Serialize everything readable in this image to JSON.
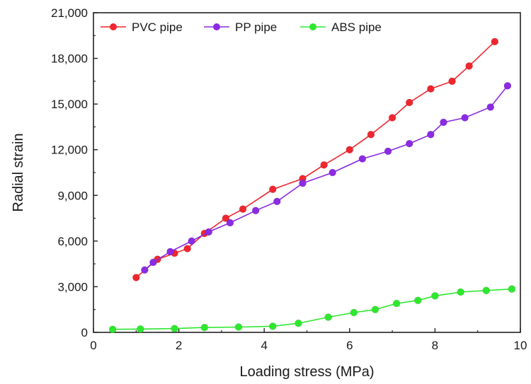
{
  "chart_data": {
    "type": "line",
    "title": "",
    "xlabel": "Loading stress (MPa)",
    "ylabel": "Radial strain",
    "xlim": [
      0,
      10
    ],
    "ylim": [
      0,
      21000
    ],
    "xticks": [
      0,
      2,
      4,
      6,
      8,
      10
    ],
    "xtick_labels": [
      "0",
      "2",
      "4",
      "6",
      "8",
      "10"
    ],
    "yticks": [
      0,
      3000,
      6000,
      9000,
      12000,
      15000,
      18000,
      21000
    ],
    "ytick_labels": [
      "0",
      "3,000",
      "6,000",
      "9,000",
      "12,000",
      "15,000",
      "18,000",
      "21,000"
    ],
    "grid": false,
    "legend_position": "top-left",
    "series": [
      {
        "name": "PVC pipe",
        "color": "#f0262f",
        "x": [
          1.0,
          1.5,
          1.9,
          2.2,
          2.6,
          3.1,
          3.5,
          4.2,
          4.9,
          5.4,
          6.0,
          6.5,
          7.0,
          7.4,
          7.9,
          8.4,
          8.8,
          9.4
        ],
        "y": [
          3600,
          4800,
          5200,
          5500,
          6500,
          7500,
          8100,
          9400,
          10100,
          11000,
          12000,
          13000,
          14100,
          15100,
          16000,
          16500,
          17500,
          19100
        ]
      },
      {
        "name": "PP pipe",
        "color": "#8b2be2",
        "x": [
          1.2,
          1.4,
          1.8,
          2.3,
          2.7,
          3.2,
          3.8,
          4.3,
          4.9,
          5.6,
          6.3,
          6.9,
          7.4,
          7.9,
          8.2,
          8.7,
          9.3,
          9.7
        ],
        "y": [
          4100,
          4600,
          5300,
          6000,
          6600,
          7200,
          8000,
          8600,
          9800,
          10500,
          11400,
          11900,
          12400,
          13000,
          13800,
          14100,
          14800,
          16200
        ]
      },
      {
        "name": "ABS pipe",
        "color": "#2ee82e",
        "x": [
          0.45,
          1.1,
          1.9,
          2.6,
          3.4,
          4.2,
          4.8,
          5.5,
          6.1,
          6.6,
          7.1,
          7.6,
          8.0,
          8.6,
          9.2,
          9.8
        ],
        "y": [
          200,
          220,
          250,
          320,
          350,
          400,
          600,
          1000,
          1300,
          1500,
          1900,
          2100,
          2400,
          2650,
          2750,
          2850
        ]
      }
    ]
  }
}
